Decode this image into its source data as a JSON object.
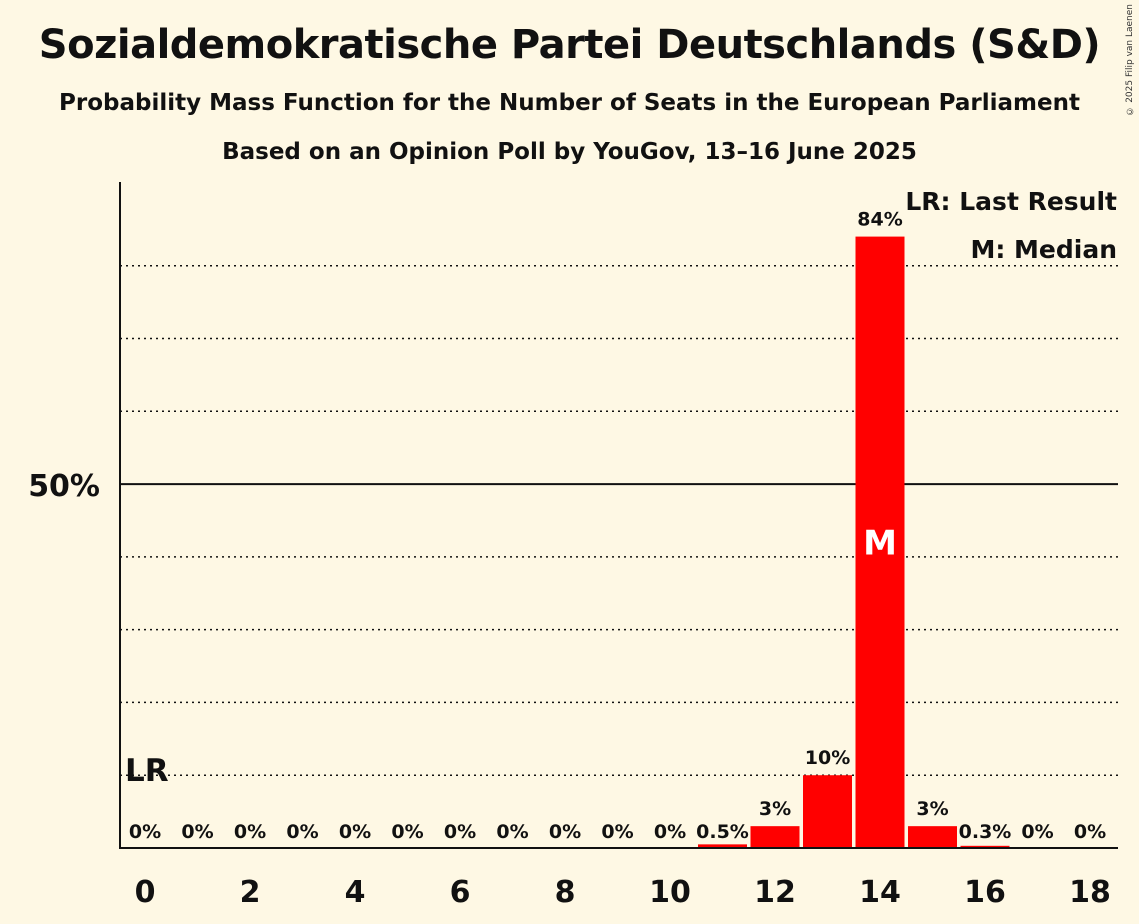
{
  "title": "Sozialdemokratische Partei Deutschlands (S&D)",
  "subtitle1": "Probability Mass Function for the Number of Seats in the European Parliament",
  "subtitle2": "Based on an Opinion Poll by YouGov, 13–16 June 2025",
  "copyright": "© 2025 Filip van Laenen",
  "colors": {
    "bar": "#ff0000",
    "background": "#fef8e4"
  },
  "chart_data": {
    "type": "bar",
    "title": "Sozialdemokratische Partei Deutschlands (S&D)",
    "xlabel": "",
    "ylabel": "",
    "categories": [
      0,
      1,
      2,
      3,
      4,
      5,
      6,
      7,
      8,
      9,
      10,
      11,
      12,
      13,
      14,
      15,
      16,
      17,
      18
    ],
    "values": [
      0,
      0,
      0,
      0,
      0,
      0,
      0,
      0,
      0,
      0,
      0,
      0.5,
      3,
      10,
      84,
      3,
      0.3,
      0,
      0
    ],
    "value_labels": [
      "0%",
      "0%",
      "0%",
      "0%",
      "0%",
      "0%",
      "0%",
      "0%",
      "0%",
      "0%",
      "0%",
      "0.5%",
      "3%",
      "10%",
      "84%",
      "3%",
      "0.3%",
      "0%",
      "0%"
    ],
    "x_tick_labels": [
      "0",
      "2",
      "4",
      "6",
      "8",
      "10",
      "12",
      "14",
      "16",
      "18"
    ],
    "y_tick_label": "50%",
    "ylim": [
      0,
      91.5
    ],
    "gridlines": [
      10,
      20,
      30,
      40,
      60,
      70,
      80
    ],
    "solid_line": 50,
    "last_result_seat": 0,
    "last_result_marker": "LR",
    "median_seat": 14,
    "median_marker": "M",
    "legend": [
      "LR: Last Result",
      "M: Median"
    ],
    "legend_position": "top-right"
  }
}
